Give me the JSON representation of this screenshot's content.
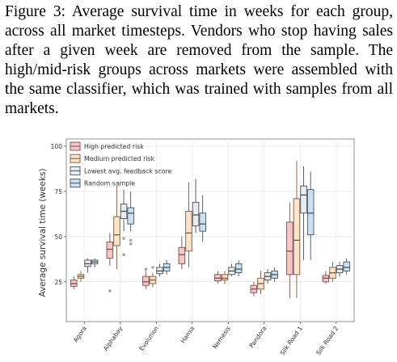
{
  "caption": "Figure 3:   Average survival time in weeks for each group, across all market timesteps. Vendors who stop having sales after a given week are removed from the sample. The high/mid-risk groups across markets were assembled with the same classifier, which was trained with samples from all markets.",
  "chart_data": {
    "type": "box",
    "ylabel": "Average survival time (weeks)",
    "yticks": [
      25,
      50,
      75,
      100
    ],
    "ylim": [
      3,
      104
    ],
    "grid": true,
    "legend_position": "top-left",
    "categories": [
      "Agora",
      "Alphabay",
      "Evolution",
      "Hansa",
      "Nemesis",
      "Pandora",
      "Silk Road 1",
      "Silk Road 2"
    ],
    "series": [
      {
        "name": "High predicted risk",
        "color": "#F4C7C8",
        "stroke": "#7E4A4C",
        "boxes": [
          {
            "min": 21,
            "q1": 22.5,
            "median": 24,
            "q3": 26,
            "max": 28,
            "outliers": []
          },
          {
            "min": 34,
            "q1": 38,
            "median": 43,
            "q3": 47,
            "max": 52,
            "outliers": [
              20
            ]
          },
          {
            "min": 21,
            "q1": 23,
            "median": 25,
            "q3": 28,
            "max": 31,
            "outliers": [
              32
            ]
          },
          {
            "min": 32,
            "q1": 35,
            "median": 40,
            "q3": 44,
            "max": 50,
            "outliers": []
          },
          {
            "min": 24,
            "q1": 25.5,
            "median": 27,
            "q3": 29,
            "max": 31,
            "outliers": []
          },
          {
            "min": 17,
            "q1": 19,
            "median": 21,
            "q3": 23,
            "max": 25,
            "outliers": []
          },
          {
            "min": 16,
            "q1": 29,
            "median": 42,
            "q3": 58,
            "max": 69,
            "outliers": []
          },
          {
            "min": 24,
            "q1": 25,
            "median": 27,
            "q3": 28.5,
            "max": 31,
            "outliers": []
          }
        ]
      },
      {
        "name": "Medium predicted risk",
        "color": "#FBE3CC",
        "stroke": "#7D5A3C",
        "boxes": [
          {
            "min": 25,
            "q1": 27,
            "median": 28,
            "q3": 29,
            "max": 31,
            "outliers": []
          },
          {
            "min": 32,
            "q1": 45,
            "median": 51,
            "q3": 61,
            "max": 78,
            "outliers": []
          },
          {
            "min": 22,
            "q1": 24,
            "median": 26,
            "q3": 28,
            "max": 30,
            "outliers": [
              33
            ]
          },
          {
            "min": 33,
            "q1": 42,
            "median": 52,
            "q3": 64,
            "max": 80,
            "outliers": []
          },
          {
            "min": 24,
            "q1": 26,
            "median": 27,
            "q3": 29,
            "max": 31,
            "outliers": []
          },
          {
            "min": 18,
            "q1": 21,
            "median": 24,
            "q3": 27,
            "max": 31,
            "outliers": []
          },
          {
            "min": 16,
            "q1": 29,
            "median": 48,
            "q3": 71,
            "max": 92,
            "outliers": []
          },
          {
            "min": 25,
            "q1": 27,
            "median": 30,
            "q3": 33,
            "max": 36,
            "outliers": []
          }
        ]
      },
      {
        "name": "Lowest avg. feedback score",
        "color": "#E8EDF1",
        "stroke": "#4A4F55",
        "boxes": [
          {
            "min": 30,
            "q1": 33.5,
            "median": 35,
            "q3": 37,
            "max": 38,
            "outliers": []
          },
          {
            "min": 53,
            "q1": 60,
            "median": 64,
            "q3": 68,
            "max": 76,
            "outliers": [
              40,
              49
            ]
          },
          {
            "min": 28,
            "q1": 29.5,
            "median": 31,
            "q3": 33,
            "max": 35,
            "outliers": []
          },
          {
            "min": 52,
            "q1": 56,
            "median": 62,
            "q3": 69,
            "max": 82,
            "outliers": []
          },
          {
            "min": 28,
            "q1": 29,
            "median": 31,
            "q3": 33,
            "max": 35,
            "outliers": []
          },
          {
            "min": 24,
            "q1": 26,
            "median": 28,
            "q3": 30,
            "max": 32,
            "outliers": []
          },
          {
            "min": 37,
            "q1": 63,
            "median": 73,
            "q3": 78,
            "max": 89,
            "outliers": []
          },
          {
            "min": 28,
            "q1": 30,
            "median": 32,
            "q3": 34,
            "max": 36,
            "outliers": []
          }
        ]
      },
      {
        "name": "Random sample",
        "color": "#CDE0EE",
        "stroke": "#3F5566",
        "boxes": [
          {
            "min": 33,
            "q1": 35,
            "median": 36,
            "q3": 37,
            "max": 38,
            "outliers": []
          },
          {
            "min": 53,
            "q1": 57,
            "median": 63,
            "q3": 66,
            "max": 75,
            "outliers": [
              46,
              48
            ]
          },
          {
            "min": 29,
            "q1": 31,
            "median": 33,
            "q3": 35,
            "max": 37,
            "outliers": []
          },
          {
            "min": 47,
            "q1": 53,
            "median": 57,
            "q3": 63,
            "max": 73,
            "outliers": []
          },
          {
            "min": 28,
            "q1": 30,
            "median": 32,
            "q3": 35,
            "max": 37,
            "outliers": []
          },
          {
            "min": 25,
            "q1": 27,
            "median": 29,
            "q3": 31,
            "max": 33,
            "outliers": []
          },
          {
            "min": 37,
            "q1": 51,
            "median": 63,
            "q3": 76,
            "max": 86,
            "outliers": []
          },
          {
            "min": 29,
            "q1": 31,
            "median": 33,
            "q3": 36,
            "max": 38,
            "outliers": []
          }
        ]
      }
    ]
  }
}
